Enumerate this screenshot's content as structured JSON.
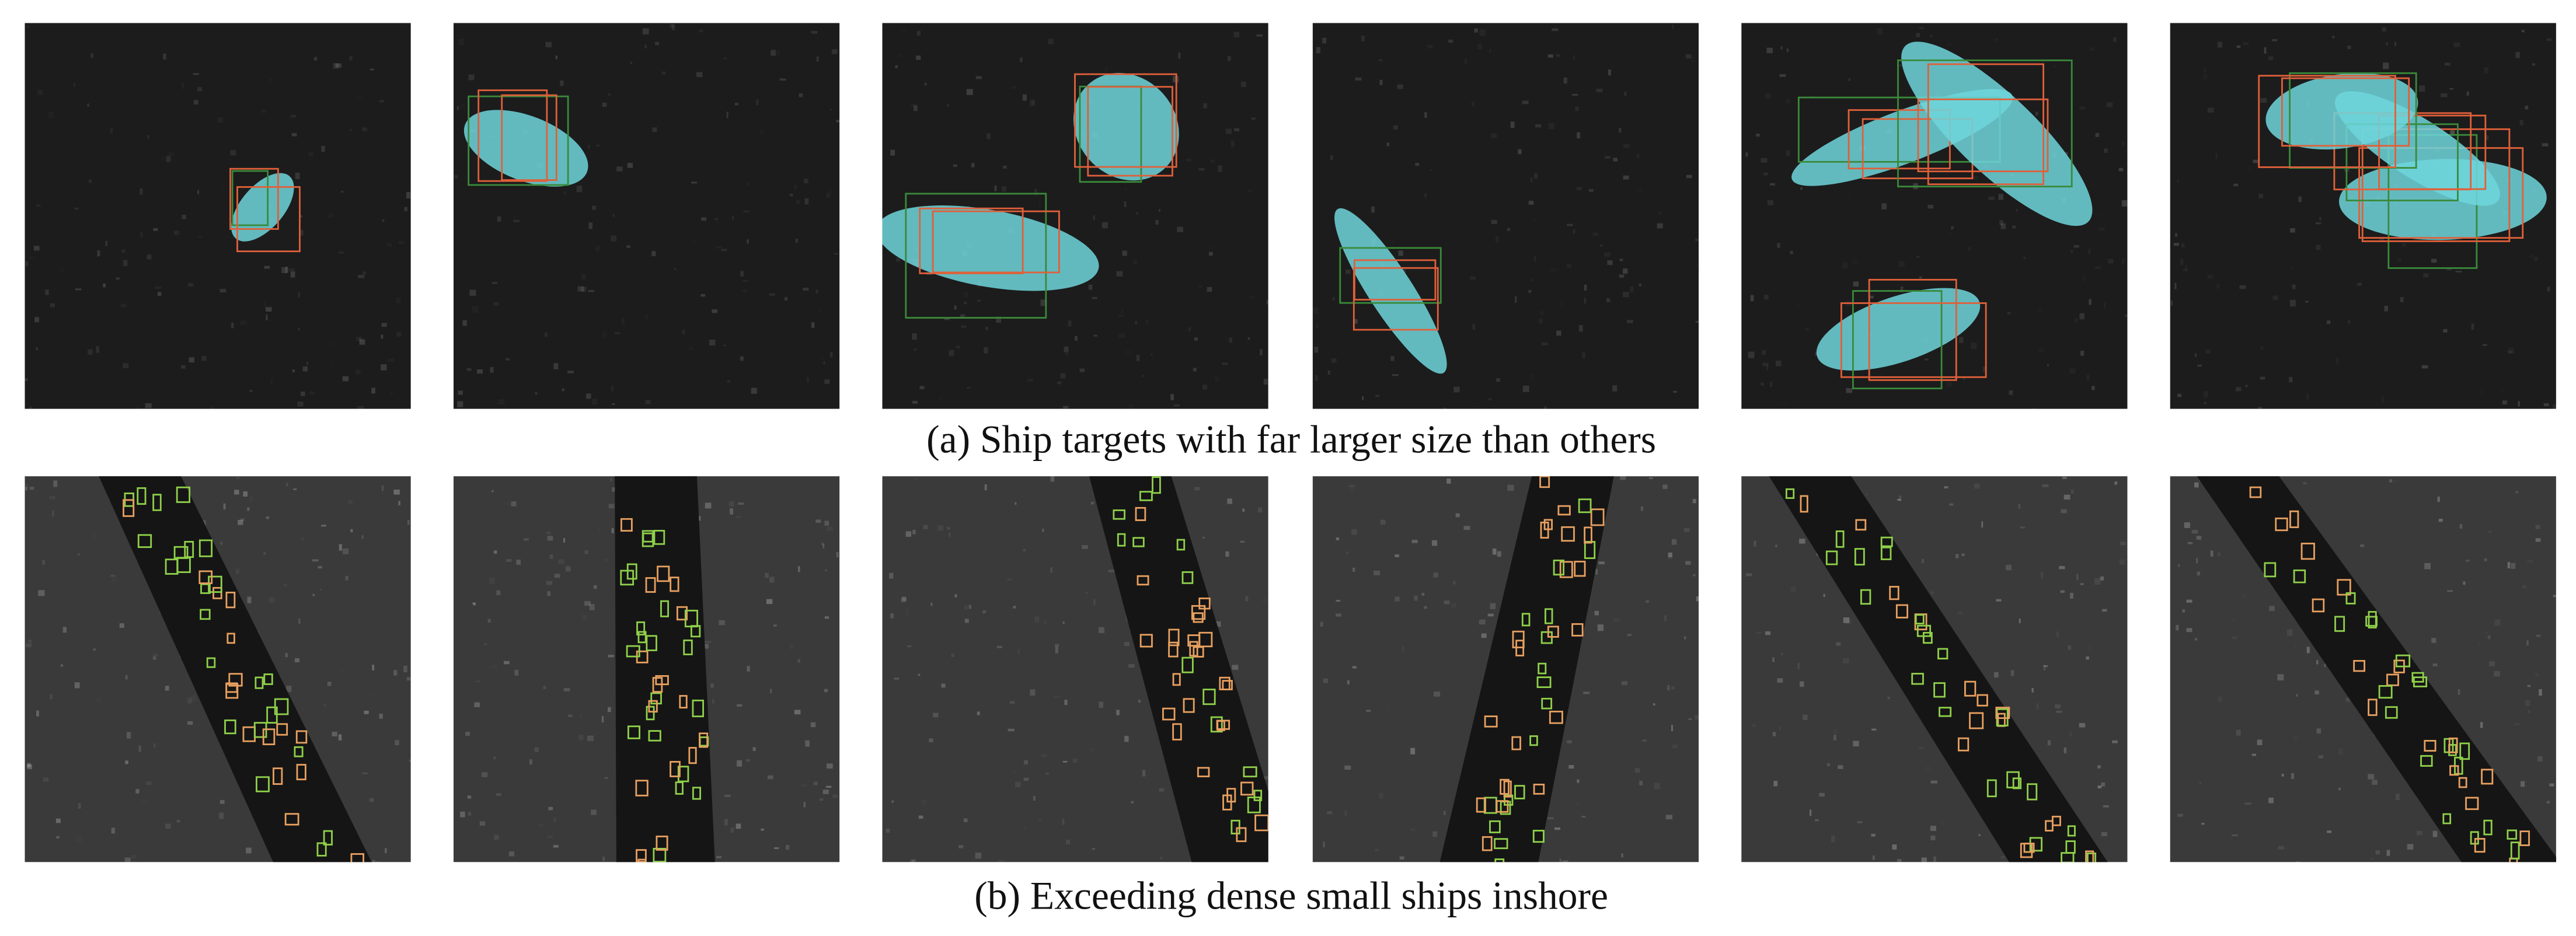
{
  "rows": [
    {
      "caption": "(a) Ship targets with far larger size than others"
    },
    {
      "caption": "(b) Exceeding dense small ships inshore"
    }
  ]
}
